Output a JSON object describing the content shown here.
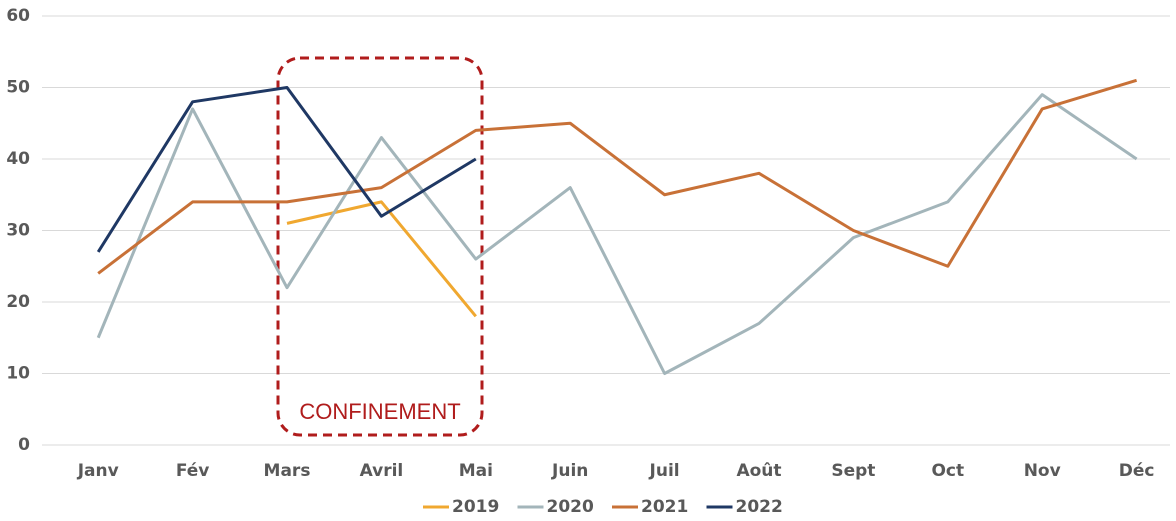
{
  "chart_data": {
    "type": "line",
    "categories": [
      "Janv",
      "Fév",
      "Mars",
      "Avril",
      "Mai",
      "Juin",
      "Juil",
      "Août",
      "Sept",
      "Oct",
      "Nov",
      "Déc"
    ],
    "series": [
      {
        "name": "2019",
        "color": "#f0a830",
        "values": [
          null,
          null,
          31,
          34,
          18,
          null,
          null,
          null,
          null,
          null,
          null,
          null
        ]
      },
      {
        "name": "2020",
        "color": "#a3b5ba",
        "values": [
          15,
          47,
          22,
          43,
          26,
          36,
          10,
          17,
          29,
          34,
          49,
          40
        ]
      },
      {
        "name": "2021",
        "color": "#c87137",
        "values": [
          24,
          34,
          34,
          36,
          44,
          45,
          35,
          38,
          30,
          25,
          47,
          51
        ]
      },
      {
        "name": "2022",
        "color": "#1f3864",
        "values": [
          27,
          48,
          50,
          32,
          40,
          null,
          null,
          null,
          null,
          null,
          null,
          null
        ]
      }
    ],
    "ylim": [
      0,
      60
    ],
    "yticks": [
      0,
      10,
      20,
      30,
      40,
      50,
      60
    ],
    "grid": true,
    "legend": "bottom",
    "annotation": "CONFINEMENT"
  }
}
